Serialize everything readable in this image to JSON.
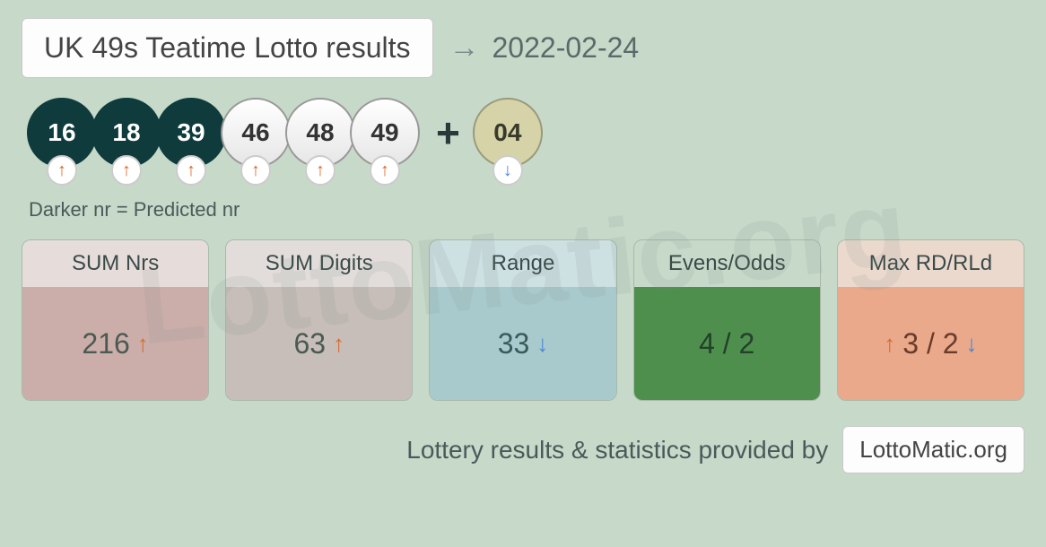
{
  "header": {
    "title": "UK 49s Teatime Lotto results",
    "date": "2022-02-24"
  },
  "balls": {
    "main": [
      {
        "number": "16",
        "predicted": true,
        "trend": "up"
      },
      {
        "number": "18",
        "predicted": true,
        "trend": "up"
      },
      {
        "number": "39",
        "predicted": true,
        "trend": "up"
      },
      {
        "number": "46",
        "predicted": false,
        "trend": "up"
      },
      {
        "number": "48",
        "predicted": false,
        "trend": "up"
      },
      {
        "number": "49",
        "predicted": false,
        "trend": "up"
      }
    ],
    "bonus": {
      "number": "04",
      "trend": "down"
    },
    "plus": "+"
  },
  "legend": "Darker nr = Predicted nr",
  "stats": [
    {
      "label": "SUM Nrs",
      "value": "216",
      "trend": "up",
      "head_bg": "#e6dcd9",
      "body_bg": "#cbaeaa",
      "text_color": "#4a5a52"
    },
    {
      "label": "SUM Digits",
      "value": "63",
      "trend": "up",
      "head_bg": "#e2dddb",
      "body_bg": "#c7bdb9",
      "text_color": "#4a5a52"
    },
    {
      "label": "Range",
      "value": "33",
      "trend": "down",
      "head_bg": "#cde0e2",
      "body_bg": "#a9cacd",
      "text_color": "#3a5a5a"
    },
    {
      "label": "Evens/Odds",
      "value": "4 / 2",
      "trend": "none",
      "head_bg": "#c7d9c9",
      "body_bg": "#4f8f4d",
      "text_color": "#23402a"
    },
    {
      "label": "Max RD/RLd",
      "value": "3 / 2",
      "trend": "both",
      "head_bg": "#ecd9ce",
      "body_bg": "#e9a98a",
      "text_color": "#6a3a2a"
    }
  ],
  "footer": {
    "text": "Lottery results & statistics provided by",
    "badge": "LottoMatic.org"
  },
  "colors": {
    "background": "#c7d9c9",
    "ball_dark": "#0f3b3d",
    "ball_bonus": "#d6d3a9",
    "trend_up": "#d96b2e",
    "trend_down": "#4a87d6"
  },
  "watermark": "LottoMatic.org"
}
